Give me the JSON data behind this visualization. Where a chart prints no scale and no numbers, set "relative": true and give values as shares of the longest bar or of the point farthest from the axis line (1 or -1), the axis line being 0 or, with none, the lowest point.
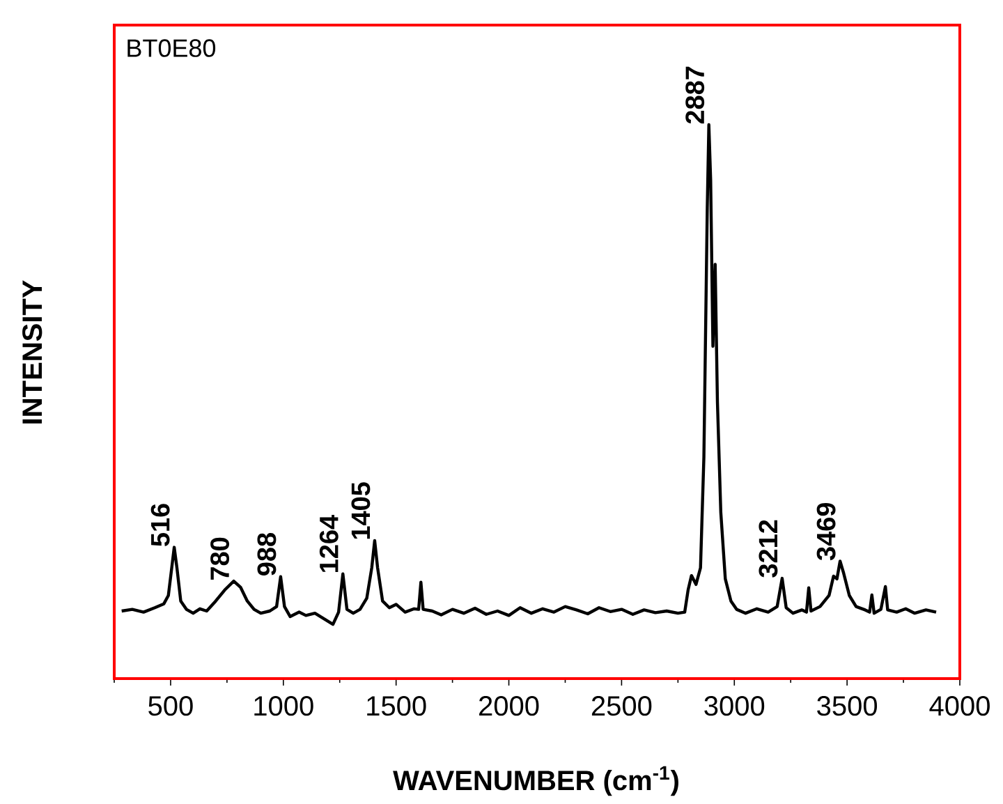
{
  "chart_data": {
    "type": "line",
    "relative": true,
    "xlabel": "**WAVENUMBER (cm$^{-1}$)**",
    "ylabel": "**INTENSITY**",
    "xlim": [
      250,
      4000
    ],
    "xticks": [
      500,
      1000,
      1500,
      2000,
      2500,
      3000,
      3500,
      4000
    ],
    "marker": "none",
    "line_style": "solid",
    "annotations": [
      "BT0E80",
      {
        "text": "516",
        "x": 516,
        "y": 0.237
      },
      {
        "text": "780",
        "x": 780,
        "y": 0.176
      },
      {
        "text": "988",
        "x": 988,
        "y": 0.184
      },
      {
        "text": "1264",
        "x": 1264,
        "y": 0.189
      },
      {
        "text": "1405",
        "x": 1405,
        "y": 0.249
      },
      {
        "text": "2887",
        "x": 2887,
        "y": 1.0
      },
      {
        "text": "3212",
        "x": 3212,
        "y": 0.181
      },
      {
        "text": "3469",
        "x": 3469,
        "y": 0.212
      }
    ],
    "series": [
      {
        "color": "#000000",
        "x": [
          283,
          330,
          380,
          430,
          470,
          490,
          505,
          516,
          528,
          545,
          570,
          600,
          630,
          660,
          700,
          740,
          780,
          810,
          840,
          870,
          900,
          940,
          970,
          988,
          1005,
          1030,
          1070,
          1100,
          1140,
          1180,
          1220,
          1245,
          1264,
          1282,
          1310,
          1340,
          1370,
          1392,
          1405,
          1418,
          1440,
          1470,
          1500,
          1540,
          1580,
          1600,
          1610,
          1620,
          1660,
          1700,
          1750,
          1800,
          1850,
          1900,
          1950,
          2000,
          2050,
          2100,
          2150,
          2200,
          2250,
          2300,
          2350,
          2400,
          2450,
          2500,
          2550,
          2600,
          2650,
          2700,
          2750,
          2780,
          2795,
          2810,
          2830,
          2850,
          2865,
          2880,
          2887,
          2895,
          2905,
          2915,
          2925,
          2940,
          2960,
          2985,
          3010,
          3050,
          3100,
          3150,
          3190,
          3212,
          3230,
          3260,
          3300,
          3320,
          3330,
          3340,
          3380,
          3420,
          3440,
          3455,
          3469,
          3485,
          3510,
          3540,
          3580,
          3600,
          3610,
          3620,
          3650,
          3670,
          3680,
          3720,
          3760,
          3800,
          3850,
          3895
        ],
        "values": [
          0.122,
          0.125,
          0.12,
          0.128,
          0.135,
          0.15,
          0.2,
          0.237,
          0.2,
          0.14,
          0.125,
          0.118,
          0.126,
          0.122,
          0.14,
          0.16,
          0.176,
          0.165,
          0.14,
          0.125,
          0.118,
          0.122,
          0.13,
          0.184,
          0.13,
          0.112,
          0.12,
          0.114,
          0.118,
          0.108,
          0.098,
          0.12,
          0.189,
          0.125,
          0.118,
          0.125,
          0.145,
          0.2,
          0.249,
          0.2,
          0.14,
          0.128,
          0.134,
          0.12,
          0.126,
          0.125,
          0.174,
          0.125,
          0.122,
          0.115,
          0.125,
          0.118,
          0.127,
          0.116,
          0.122,
          0.114,
          0.128,
          0.118,
          0.126,
          0.12,
          0.13,
          0.124,
          0.117,
          0.128,
          0.121,
          0.125,
          0.116,
          0.124,
          0.119,
          0.122,
          0.118,
          0.12,
          0.16,
          0.186,
          0.17,
          0.2,
          0.4,
          0.85,
          1.0,
          0.9,
          0.6,
          0.748,
          0.5,
          0.3,
          0.18,
          0.14,
          0.125,
          0.118,
          0.126,
          0.12,
          0.13,
          0.181,
          0.128,
          0.118,
          0.124,
          0.12,
          0.164,
          0.122,
          0.13,
          0.15,
          0.185,
          0.18,
          0.212,
          0.19,
          0.15,
          0.13,
          0.124,
          0.12,
          0.151,
          0.118,
          0.125,
          0.166,
          0.124,
          0.12,
          0.126,
          0.118,
          0.124,
          0.12
        ]
      }
    ]
  }
}
